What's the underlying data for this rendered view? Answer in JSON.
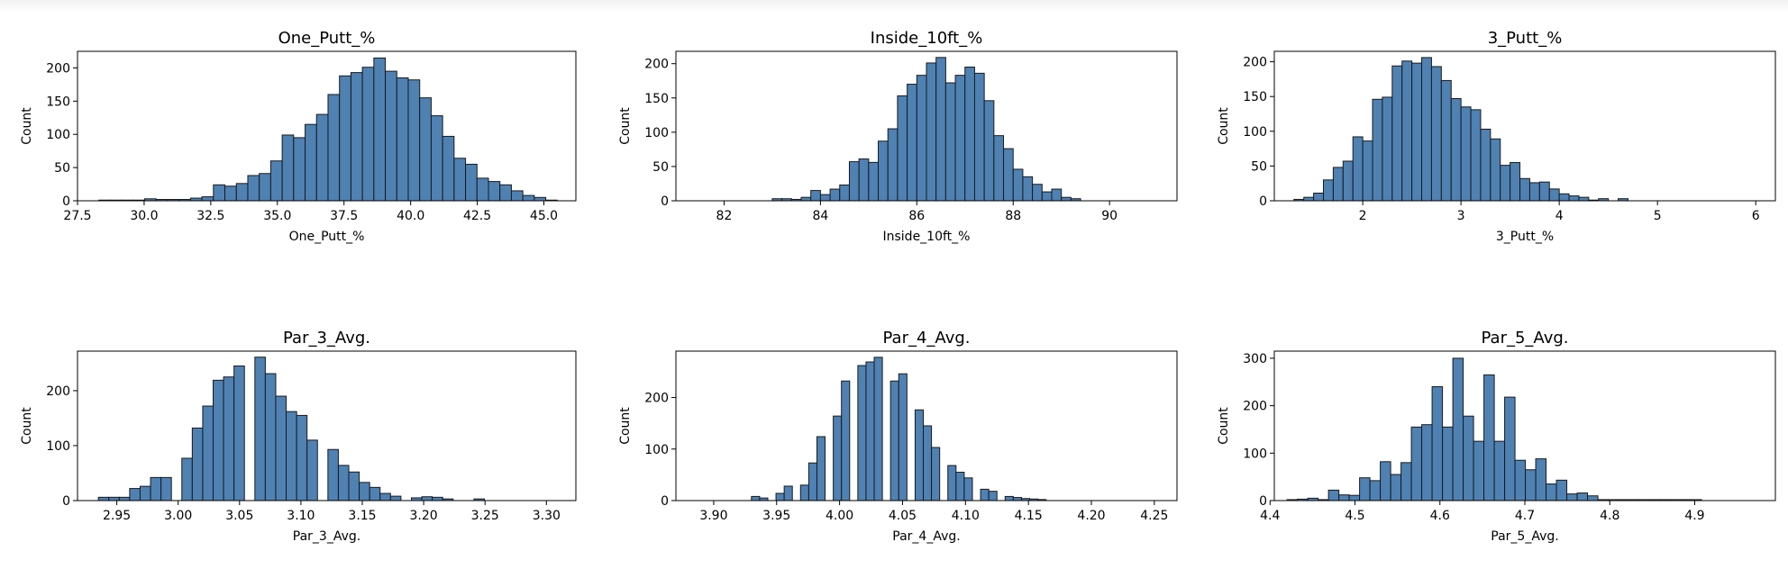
{
  "chart_data": [
    {
      "type": "histogram",
      "title": "One_Putt_%",
      "xlabel": "One_Putt_%",
      "ylabel": "Count",
      "xlim": [
        27.5,
        46.2
      ],
      "ylim": [
        0,
        225
      ],
      "xticks": [
        27.5,
        30.0,
        32.5,
        35.0,
        37.5,
        40.0,
        42.5,
        45.0
      ],
      "xtick_labels": [
        "27.5",
        "30.0",
        "32.5",
        "35.0",
        "37.5",
        "40.0",
        "42.5",
        "45.0"
      ],
      "yticks": [
        0,
        50,
        100,
        150,
        200
      ],
      "bin_start": 28.3,
      "bin_width": 0.43,
      "counts": [
        1,
        1,
        1,
        1,
        3,
        2,
        2,
        2,
        4,
        6,
        24,
        22,
        26,
        38,
        41,
        60,
        99,
        95,
        115,
        130,
        160,
        188,
        193,
        201,
        215,
        195,
        185,
        182,
        155,
        128,
        97,
        64,
        55,
        34,
        29,
        24,
        15,
        8,
        5,
        1
      ]
    },
    {
      "type": "histogram",
      "title": "Inside_10ft_%",
      "xlabel": "Inside_10ft_%",
      "ylabel": "Count",
      "xlim": [
        81.0,
        91.4
      ],
      "ylim": [
        0,
        218
      ],
      "xticks": [
        82,
        84,
        86,
        88,
        90
      ],
      "xtick_labels": [
        "82",
        "84",
        "86",
        "88",
        "90"
      ],
      "yticks": [
        0,
        50,
        100,
        150,
        200
      ],
      "bin_start": 83.0,
      "bin_width": 0.2,
      "counts": [
        3,
        3,
        2,
        5,
        15,
        9,
        17,
        23,
        57,
        61,
        56,
        87,
        105,
        153,
        170,
        183,
        201,
        209,
        172,
        183,
        195,
        186,
        146,
        95,
        76,
        46,
        35,
        24,
        13,
        17,
        5,
        3
      ]
    },
    {
      "type": "histogram",
      "title": "3_Putt_%",
      "xlabel": "3_Putt_%",
      "ylabel": "Count",
      "xlim": [
        1.1,
        6.2
      ],
      "ylim": [
        0,
        215
      ],
      "xticks": [
        2,
        3,
        4,
        5,
        6
      ],
      "xtick_labels": [
        "2",
        "3",
        "4",
        "5",
        "6"
      ],
      "yticks": [
        0,
        50,
        100,
        150,
        200
      ],
      "bin_start": 1.3,
      "bin_width": 0.1,
      "counts": [
        2,
        5,
        11,
        30,
        48,
        57,
        92,
        86,
        146,
        149,
        194,
        201,
        198,
        206,
        193,
        173,
        147,
        135,
        131,
        103,
        89,
        51,
        55,
        32,
        26,
        27,
        17,
        10,
        7,
        5,
        1,
        3,
        0,
        3
      ]
    },
    {
      "type": "histogram",
      "title": "Par_3_Avg.",
      "xlabel": "Par_3_Avg.",
      "ylabel": "Count",
      "xlim": [
        2.918,
        3.324
      ],
      "ylim": [
        0,
        272
      ],
      "xticks": [
        2.95,
        3.0,
        3.05,
        3.1,
        3.15,
        3.2,
        3.25,
        3.3
      ],
      "xtick_labels": [
        "2.95",
        "3.00",
        "3.05",
        "3.10",
        "3.15",
        "3.20",
        "3.25",
        "3.30"
      ],
      "yticks": [
        0,
        100,
        200
      ],
      "bin_start": 2.935,
      "bin_width": 0.0085,
      "counts": [
        6,
        6,
        6,
        22,
        26,
        42,
        42,
        0,
        77,
        132,
        172,
        219,
        225,
        245,
        0,
        261,
        231,
        190,
        162,
        155,
        110,
        0,
        93,
        64,
        52,
        33,
        24,
        13,
        8,
        0,
        5,
        7,
        6,
        3,
        0,
        0,
        3
      ]
    },
    {
      "type": "histogram",
      "title": "Par_4_Avg.",
      "xlabel": "Par_4_Avg.",
      "ylabel": "Count",
      "xlim": [
        3.87,
        4.268
      ],
      "ylim": [
        0,
        290
      ],
      "xticks": [
        3.9,
        3.95,
        4.0,
        4.05,
        4.1,
        4.15,
        4.2,
        4.25
      ],
      "xtick_labels": [
        "3.90",
        "3.95",
        "4.00",
        "4.05",
        "4.10",
        "4.15",
        "4.20",
        "4.25"
      ],
      "yticks": [
        0,
        100,
        200
      ],
      "bin_start": 3.93,
      "bin_width": 0.0065,
      "counts": [
        8,
        5,
        0,
        14,
        28,
        0,
        30,
        73,
        124,
        0,
        164,
        232,
        0,
        262,
        269,
        278,
        0,
        232,
        246,
        0,
        176,
        145,
        103,
        0,
        68,
        55,
        44,
        0,
        22,
        18,
        0,
        8,
        6,
        4,
        3,
        2
      ]
    },
    {
      "type": "histogram",
      "title": "Par_5_Avg.",
      "xlabel": "Par_5_Avg.",
      "ylabel": "Count",
      "xlim": [
        4.405,
        4.995
      ],
      "ylim": [
        0,
        315
      ],
      "xticks": [
        4.4,
        4.5,
        4.6,
        4.7,
        4.8,
        4.9
      ],
      "xtick_labels": [
        "4.4",
        "4.5",
        "4.6",
        "4.7",
        "4.8",
        "4.9"
      ],
      "yticks": [
        0,
        100,
        200,
        300
      ],
      "bin_start": 4.42,
      "bin_width": 0.0122,
      "counts": [
        2,
        3,
        5,
        2,
        22,
        12,
        11,
        48,
        42,
        82,
        55,
        80,
        155,
        160,
        240,
        155,
        300,
        178,
        125,
        265,
        125,
        218,
        85,
        65,
        88,
        35,
        43,
        14,
        16,
        10,
        2,
        2,
        2,
        2,
        2,
        2,
        2,
        2,
        2,
        2
      ]
    }
  ],
  "colors": {
    "bar_fill": "#4f81b3",
    "bar_edge": "#1a1a1a"
  }
}
